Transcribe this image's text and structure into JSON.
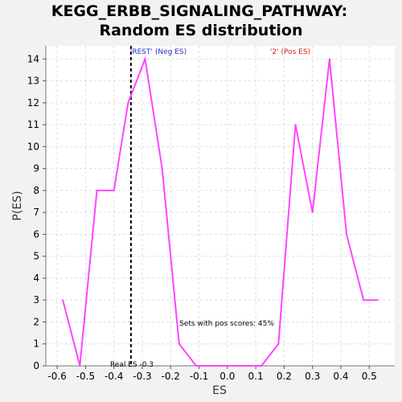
{
  "chart_data": {
    "type": "line",
    "title_line1": "KEGG_ERBB_SIGNALING_PATHWAY:",
    "title_line2": "Random ES distribution",
    "xlabel": "ES",
    "ylabel": "P(ES)",
    "xlim": [
      -0.64,
      0.59
    ],
    "ylim": [
      0,
      14.6
    ],
    "xticks": [
      -0.6,
      -0.5,
      -0.4,
      -0.3,
      -0.2,
      -0.1,
      0.0,
      0.1,
      0.2,
      0.3,
      0.4,
      0.5
    ],
    "xtick_labels": [
      "-0.6",
      "-0.5",
      "-0.4",
      "-0.3",
      "-0.2",
      "-0.1",
      "0.0",
      "0.1",
      "0.2",
      "0.3",
      "0.4",
      "0.5"
    ],
    "yticks": [
      0,
      1,
      2,
      3,
      4,
      5,
      6,
      7,
      8,
      9,
      10,
      11,
      12,
      13,
      14
    ],
    "ytick_labels": [
      "0",
      "1",
      "2",
      "3",
      "4",
      "5",
      "6",
      "7",
      "8",
      "9",
      "10",
      "11",
      "12",
      "13",
      "14"
    ],
    "grid": true,
    "line_color": "#ff44ff",
    "x": [
      -0.58,
      -0.52,
      -0.46,
      -0.4,
      -0.35,
      -0.29,
      -0.23,
      -0.17,
      -0.11,
      -0.05,
      0.01,
      0.07,
      0.12,
      0.18,
      0.24,
      0.3,
      0.36,
      0.42,
      0.48,
      0.53
    ],
    "y": [
      3,
      0,
      8,
      8,
      12,
      14,
      9,
      1,
      0,
      0,
      0,
      0,
      0,
      1,
      11,
      7,
      14,
      6,
      3,
      3
    ],
    "real_es": -0.34,
    "annotations": {
      "neg_label": "'REST' (Neg ES)",
      "neg_color": "#2a2acc",
      "pos_label": "'2' (Pos ES)",
      "pos_color": "#cc2222",
      "sets_text": "Sets with pos scores: 45%",
      "real_es_text": "Real ES -0.3"
    }
  }
}
